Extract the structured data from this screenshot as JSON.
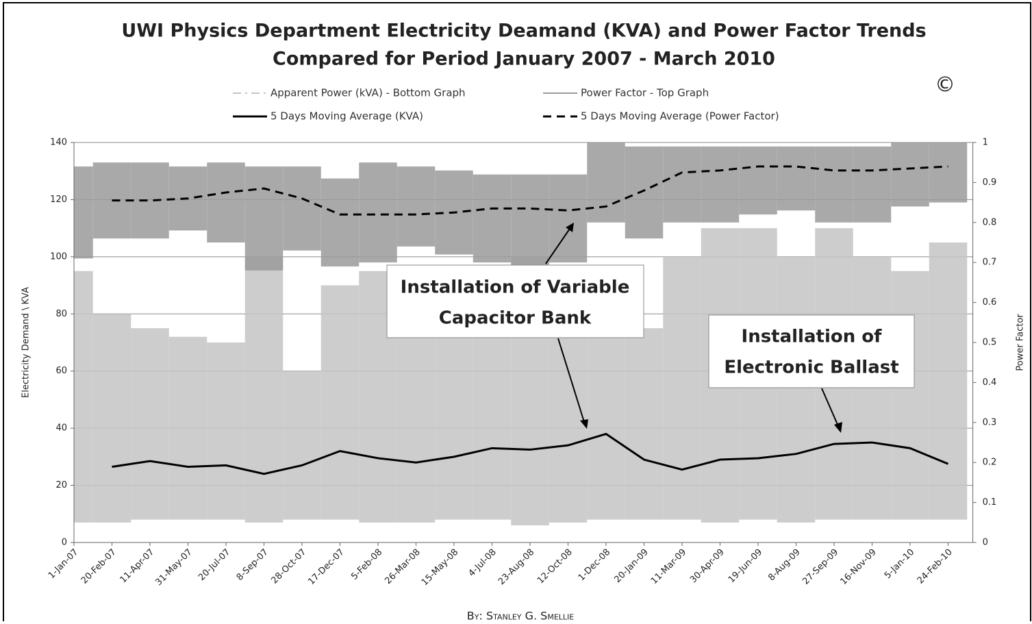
{
  "chart_data": {
    "type": "line",
    "title": "UWI Physics Department Electricity Deamand (KVA) and Power Factor Trends",
    "subtitle": "Compared for Period January 2007 - March 2010",
    "ylabel": "Electricity Demand \\ KVA",
    "y2label": "Power Factor",
    "categories": [
      "1-Jan-07",
      "20-Feb-07",
      "11-Apr-07",
      "31-May-07",
      "20-Jul-07",
      "8-Sep-07",
      "28-Oct-07",
      "17-Dec-07",
      "5-Feb-08",
      "26-Mar-08",
      "15-May-08",
      "4-Jul-08",
      "23-Aug-08",
      "12-Oct-08",
      "1-Dec-08",
      "20-Jan-09",
      "11-Mar-09",
      "30-Apr-09",
      "19-Jun-09",
      "8-Aug-09",
      "27-Sep-09",
      "16-Nov-09",
      "5-Jan-10",
      "24-Feb-10"
    ],
    "ylim": [
      0,
      140
    ],
    "yticks": [
      0,
      20,
      40,
      60,
      80,
      100,
      120,
      140
    ],
    "y2lim": [
      0,
      1
    ],
    "y2ticks": [
      0,
      0.1,
      0.2,
      0.3,
      0.4,
      0.5,
      0.6,
      0.7,
      0.8,
      0.9,
      1
    ],
    "grid": true,
    "ranges": [
      {
        "name": "Apparent Power (kVA) - Bottom Graph",
        "color": "#c4c4c4",
        "low": [
          7,
          7,
          8,
          8,
          8,
          7,
          8,
          8,
          7,
          7,
          8,
          8,
          6,
          7,
          8,
          8,
          8,
          7,
          8,
          7,
          8,
          8,
          8,
          8
        ],
        "high": [
          95,
          80,
          75,
          72,
          70,
          100,
          60,
          90,
          95,
          85,
          85,
          85,
          100,
          95,
          80,
          75,
          100,
          110,
          110,
          100,
          110,
          100,
          95,
          105
        ]
      },
      {
        "name": "Power Factor - Top Graph",
        "color": "#9a9a9a",
        "axis": "y2",
        "low": [
          0.71,
          0.76,
          0.76,
          0.78,
          0.75,
          0.68,
          0.73,
          0.69,
          0.7,
          0.74,
          0.72,
          0.7,
          0.68,
          0.7,
          0.8,
          0.76,
          0.8,
          0.8,
          0.82,
          0.83,
          0.8,
          0.8,
          0.84,
          0.85
        ],
        "high": [
          0.94,
          0.95,
          0.95,
          0.94,
          0.95,
          0.94,
          0.94,
          0.91,
          0.95,
          0.94,
          0.93,
          0.92,
          0.92,
          0.92,
          1,
          0.99,
          0.99,
          0.99,
          0.99,
          0.99,
          0.99,
          0.99,
          1,
          1
        ]
      }
    ],
    "series": [
      {
        "name": "5 Days Moving Average (KVA)",
        "color": "#000000",
        "dash": false,
        "values": [
          null,
          26.5,
          28.5,
          26.5,
          27,
          24,
          27,
          32,
          29.5,
          28,
          30,
          33,
          32.5,
          34,
          38,
          29,
          25.5,
          29,
          29.5,
          31,
          34.5,
          35,
          33,
          27.5
        ]
      },
      {
        "name": "5 Days Moving Average (Power Factor)",
        "color": "#000000",
        "dash": true,
        "axis": "y2",
        "values": [
          null,
          0.855,
          0.855,
          0.86,
          0.875,
          0.885,
          0.86,
          0.82,
          0.82,
          0.82,
          0.825,
          0.835,
          0.835,
          0.83,
          0.84,
          0.88,
          0.925,
          0.93,
          0.94,
          0.94,
          0.93,
          0.93,
          0.935,
          0.94
        ]
      }
    ],
    "annotations": [
      [
        "Installation of Variable",
        "Capacitor Bank"
      ],
      [
        "Installation of",
        "Electronic Ballast"
      ]
    ],
    "copyright": "©",
    "credit": "By: Stanley G. Smellie"
  }
}
